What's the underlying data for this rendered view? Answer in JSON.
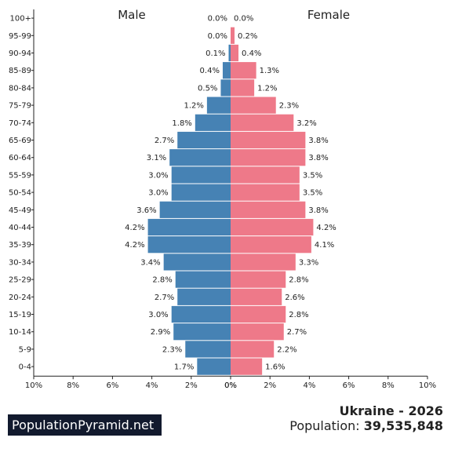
{
  "chart_data": {
    "type": "bar",
    "subtype": "population-pyramid",
    "categories": [
      "0-4",
      "5-9",
      "10-14",
      "15-19",
      "20-24",
      "25-29",
      "30-34",
      "35-39",
      "40-44",
      "45-49",
      "50-54",
      "55-59",
      "60-64",
      "65-69",
      "70-74",
      "75-79",
      "80-84",
      "85-89",
      "90-94",
      "95-99",
      "100+"
    ],
    "series": [
      {
        "name": "Male",
        "color": "#4682b4",
        "values": [
          1.7,
          2.3,
          2.9,
          3.0,
          2.7,
          2.8,
          3.4,
          4.2,
          4.2,
          3.6,
          3.0,
          3.0,
          3.1,
          2.7,
          1.8,
          1.2,
          0.5,
          0.4,
          0.1,
          0.0,
          0.0
        ],
        "labels": [
          "1.7%",
          "2.3%",
          "2.9%",
          "3.0%",
          "2.7%",
          "2.8%",
          "3.4%",
          "4.2%",
          "4.2%",
          "3.6%",
          "3.0%",
          "3.0%",
          "3.1%",
          "2.7%",
          "1.8%",
          "1.2%",
          "0.5%",
          "0.4%",
          "0.1%",
          "0.0%",
          "0.0%"
        ]
      },
      {
        "name": "Female",
        "color": "#ee7989",
        "values": [
          1.6,
          2.2,
          2.7,
          2.8,
          2.6,
          2.8,
          3.3,
          4.1,
          4.2,
          3.8,
          3.5,
          3.5,
          3.8,
          3.8,
          3.2,
          2.3,
          1.2,
          1.3,
          0.4,
          0.2,
          0.0
        ],
        "labels": [
          "1.6%",
          "2.2%",
          "2.7%",
          "2.8%",
          "2.6%",
          "2.8%",
          "3.3%",
          "4.1%",
          "4.2%",
          "3.8%",
          "3.5%",
          "3.5%",
          "3.8%",
          "3.8%",
          "3.2%",
          "2.3%",
          "1.2%",
          "1.3%",
          "0.4%",
          "0.2%",
          "0.0%"
        ]
      }
    ],
    "xlim": [
      -10,
      10
    ],
    "xticks": [
      "10%",
      "8%",
      "6%",
      "4%",
      "2%",
      "0%",
      "0%",
      "2%",
      "4%",
      "6%",
      "8%",
      "10%"
    ],
    "left_title": "Male",
    "right_title": "Female"
  },
  "footer": {
    "brand": "PopulationPyramid.net",
    "country_year": "Ukraine - 2026",
    "population_label": "Population:",
    "population_value": "39,535,848"
  }
}
